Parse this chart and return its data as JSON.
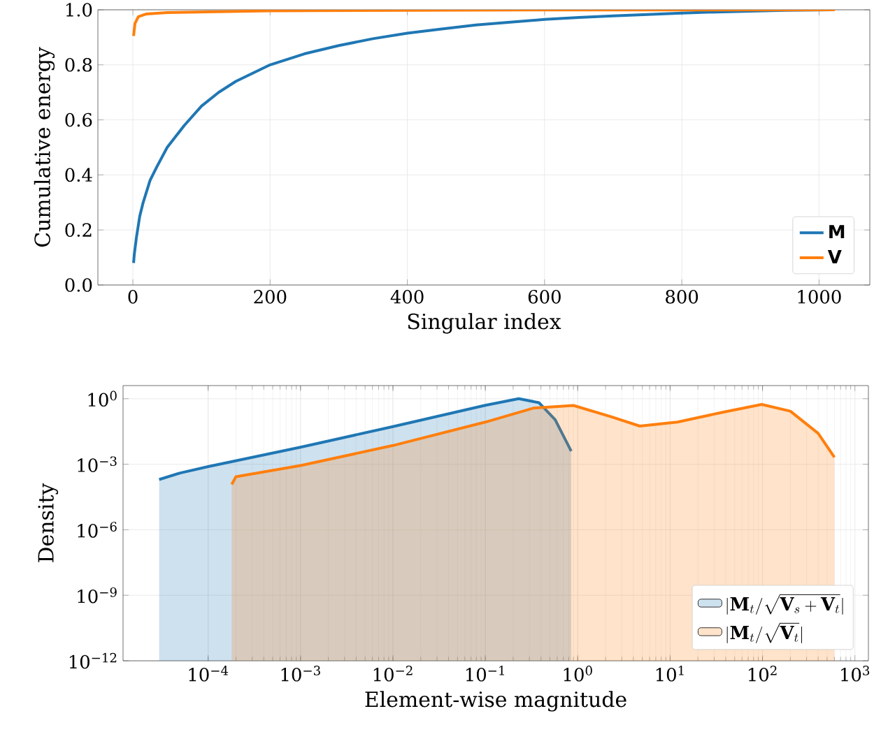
{
  "chart_data": [
    {
      "type": "line",
      "xlabel": "Singular index",
      "ylabel": "Cumulative energy",
      "xlim": [
        -51,
        1074
      ],
      "ylim": [
        0,
        1
      ],
      "xticks": [
        0,
        200,
        400,
        600,
        800,
        1000
      ],
      "yticks": [
        {
          "value": 0,
          "label": "0.0"
        },
        {
          "value": 0.2,
          "label": "0.2"
        },
        {
          "value": 0.4,
          "label": "0.4"
        },
        {
          "value": 0.6,
          "label": "0.6"
        },
        {
          "value": 0.8,
          "label": "0.8"
        },
        {
          "value": 1,
          "label": "1.0"
        }
      ],
      "grid": true,
      "legend": "bottom right",
      "series": [
        {
          "name": "M",
          "color": "#1f77b4",
          "x": [
            1,
            2,
            5,
            10,
            15,
            25,
            35,
            50,
            75,
            100,
            125,
            150,
            200,
            250,
            300,
            350,
            400,
            450,
            500,
            550,
            600,
            650,
            700,
            750,
            800,
            850,
            900,
            950,
            1023
          ],
          "values": [
            0.08,
            0.11,
            0.17,
            0.25,
            0.3,
            0.38,
            0.43,
            0.5,
            0.58,
            0.65,
            0.7,
            0.74,
            0.8,
            0.84,
            0.87,
            0.895,
            0.915,
            0.93,
            0.945,
            0.955,
            0.965,
            0.972,
            0.978,
            0.983,
            0.988,
            0.992,
            0.995,
            0.998,
            1.0
          ]
        },
        {
          "name": "V",
          "color": "#ff7f0e",
          "x": [
            1,
            3,
            8,
            20,
            50,
            200,
            500,
            1023
          ],
          "values": [
            0.905,
            0.95,
            0.975,
            0.985,
            0.99,
            0.996,
            0.999,
            1.0
          ]
        }
      ]
    },
    {
      "type": "area",
      "xlabel": "Element-wise magnitude",
      "ylabel": "Density",
      "log": "xy",
      "xlim": [
        1.2e-05,
        1400
      ],
      "ylim": [
        1e-12,
        4
      ],
      "xticks": [
        {
          "value": 0.0001,
          "label": "10$^{−4}$"
        },
        {
          "value": 0.001,
          "label": "10$^{−3}$"
        },
        {
          "value": 0.01,
          "label": "10$^{−2}$"
        },
        {
          "value": 0.1,
          "label": "10$^{−1}$"
        },
        {
          "value": 1,
          "label": "10$^{0}$"
        },
        {
          "value": 10,
          "label": "10$^{1}$"
        },
        {
          "value": 100,
          "label": "10$^{2}$"
        },
        {
          "value": 1000,
          "label": "10$^{3}$"
        }
      ],
      "yticks": [
        {
          "value": 1e-12,
          "label": "10$^{−12}$"
        },
        {
          "value": 1e-09,
          "label": "10$^{−9}$"
        },
        {
          "value": 1e-06,
          "label": "10$^{−6}$"
        },
        {
          "value": 0.001,
          "label": "10$^{−3}$"
        },
        {
          "value": 1,
          "label": "10$^{0}$"
        }
      ],
      "grid": true,
      "legend": "bottom right",
      "series": [
        {
          "name": "|\\mathbf{M}_t/\\sqrt{\\mathbf{V}_s+\\mathbf{V}_t}|",
          "color": "#1f77b4",
          "x": [
            2.95e-05,
            5e-05,
            0.0001,
            0.001,
            0.01,
            0.1,
            0.23,
            0.38,
            0.57,
            0.85
          ],
          "values": [
            0.0002,
            0.0004,
            0.00078,
            0.006,
            0.053,
            0.5,
            1.0,
            0.66,
            0.11,
            0.004
          ]
        },
        {
          "name": "|\\mathbf{M}_t/\\sqrt{\\mathbf{V}_t}|",
          "color": "#ff7f0e",
          "x": [
            0.00018,
            0.0002,
            0.001,
            0.01,
            0.1,
            0.33,
            0.9,
            2.3,
            4.7,
            12,
            37,
            98,
            200,
            400,
            600
          ],
          "values": [
            0.00012,
            0.00027,
            0.00087,
            0.0072,
            0.085,
            0.37,
            0.49,
            0.15,
            0.056,
            0.085,
            0.24,
            0.55,
            0.27,
            0.026,
            0.0021
          ]
        }
      ]
    }
  ]
}
